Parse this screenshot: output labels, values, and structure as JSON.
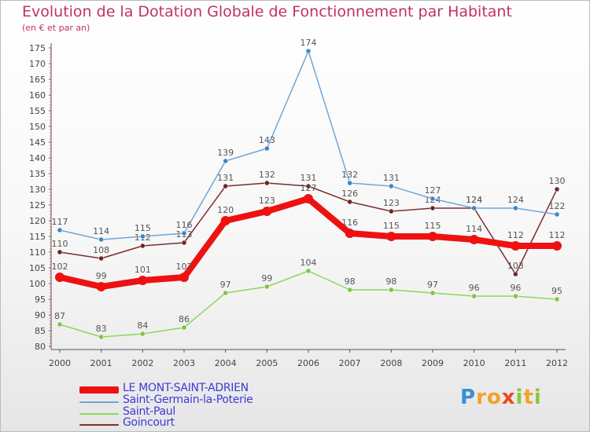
{
  "chart_data": {
    "type": "line",
    "title": "Evolution de la Dotation Globale de Fonctionnement par Habitant",
    "subtitle": "(en € et par an)",
    "xlabel": "",
    "ylabel": "",
    "ylim": [
      80,
      175
    ],
    "yticks": [
      80,
      85,
      90,
      95,
      100,
      105,
      110,
      115,
      120,
      125,
      130,
      135,
      140,
      145,
      150,
      155,
      160,
      165,
      170,
      175
    ],
    "categories": [
      "2000",
      "2001",
      "2002",
      "2003",
      "2004",
      "2005",
      "2006",
      "2007",
      "2008",
      "2009",
      "2010",
      "2011",
      "2012"
    ],
    "grid": false,
    "legend_position": "bottom-left",
    "series": [
      {
        "name": "Saint-Paul",
        "color": "#8ed65a",
        "dot": "#7cc44a",
        "values": [
          87,
          83,
          84,
          86,
          97,
          99,
          104,
          98,
          98,
          97,
          96,
          96,
          95
        ]
      },
      {
        "name": "Goincourt",
        "color": "#7a2e2e",
        "dot": "#6e2424",
        "values": [
          110,
          108,
          112,
          113,
          131,
          132,
          131,
          126,
          123,
          124,
          124,
          103,
          130
        ]
      },
      {
        "name": "Saint-Germain-la-Poterie",
        "color": "#6fa6d8",
        "dot": "#3d85c6",
        "values": [
          117,
          114,
          115,
          116,
          139,
          143,
          174,
          132,
          131,
          127,
          124,
          124,
          122
        ]
      },
      {
        "name": "LE MONT-SAINT-ADRIEN",
        "color": "#ee1111",
        "dot": "#ee1111",
        "values": [
          102,
          99,
          101,
          102,
          120,
          123,
          127,
          116,
          115,
          115,
          114,
          112,
          112
        ]
      }
    ],
    "legend_order": [
      "LE MONT-SAINT-ADRIEN",
      "Saint-Germain-la-Poterie",
      "Saint-Paul",
      "Goincourt"
    ]
  },
  "brand": {
    "text": "Proxiti",
    "letters": [
      {
        "ch": "P",
        "color": "#3a8fd8"
      },
      {
        "ch": "r",
        "color": "#f2a22a"
      },
      {
        "ch": "o",
        "color": "#f2a22a"
      },
      {
        "ch": "x",
        "color": "#e84a1c"
      },
      {
        "ch": "i",
        "color": "#8cc63f"
      },
      {
        "ch": "t",
        "color": "#f2a22a"
      },
      {
        "ch": "i",
        "color": "#8cc63f"
      }
    ]
  }
}
